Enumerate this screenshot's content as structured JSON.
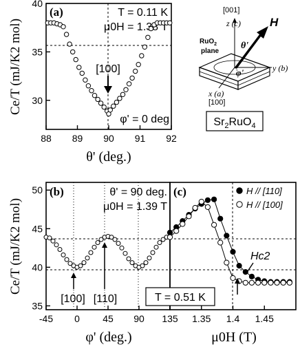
{
  "figure": {
    "material": {
      "prefix": "Sr",
      "sub1": "2",
      "mid": "RuO",
      "sub2": "4"
    },
    "schematic": {
      "axis_001": "[001]",
      "z_label": "z (c)",
      "plane_label_1": "RuO",
      "plane_label_sub": "2",
      "plane_label_2": "plane",
      "x_label": "x (a)",
      "x_index": "[100]",
      "y_label": "y (b)",
      "field_label": "H",
      "theta_label": "θ'",
      "phi_label": "φ'"
    }
  },
  "chart_data": [
    {
      "id": "a",
      "type": "scatter",
      "panel_label": "(a)",
      "annotations": [
        "T = 0.11 K",
        "μ0H = 1.38 T",
        "φ' = 0 deg",
        "[100]"
      ],
      "xlabel": "θ' (deg.)",
      "ylabel": "Ce/T (mJ/K2 mol)",
      "xlim": [
        88,
        92
      ],
      "ylim": [
        27,
        40
      ],
      "x_ticks": [
        88,
        89,
        90,
        91,
        92
      ],
      "y_ticks": [
        30,
        35,
        40
      ],
      "guides": {
        "dash_y": [
          38
        ],
        "dash_x": [
          90
        ]
      },
      "series": [
        {
          "marker": "open-circle",
          "points": [
            [
              88.05,
              38.0
            ],
            [
              88.15,
              38.0
            ],
            [
              88.25,
              38.0
            ],
            [
              88.35,
              37.9
            ],
            [
              88.45,
              37.8
            ],
            [
              88.55,
              37.6
            ],
            [
              88.65,
              36.8
            ],
            [
              88.75,
              35.8
            ],
            [
              88.85,
              35.0
            ],
            [
              88.95,
              34.2
            ],
            [
              89.05,
              33.4
            ],
            [
              89.15,
              32.8
            ],
            [
              89.25,
              32.1
            ],
            [
              89.35,
              31.5
            ],
            [
              89.45,
              31.0
            ],
            [
              89.55,
              30.5
            ],
            [
              89.65,
              30.1
            ],
            [
              89.75,
              29.7
            ],
            [
              89.85,
              29.3
            ],
            [
              89.95,
              28.9
            ],
            [
              90.0,
              28.6
            ],
            [
              90.05,
              29.0
            ],
            [
              90.15,
              29.4
            ],
            [
              90.25,
              29.8
            ],
            [
              90.35,
              30.2
            ],
            [
              90.45,
              30.6
            ],
            [
              90.55,
              31.1
            ],
            [
              90.65,
              31.7
            ],
            [
              90.75,
              32.3
            ],
            [
              90.85,
              33.0
            ],
            [
              90.95,
              33.7
            ],
            [
              91.05,
              34.6
            ],
            [
              91.15,
              35.5
            ],
            [
              91.25,
              36.5
            ],
            [
              91.35,
              37.4
            ],
            [
              91.45,
              37.8
            ],
            [
              91.55,
              38.0
            ],
            [
              91.65,
              38.0
            ],
            [
              91.75,
              38.0
            ],
            [
              91.85,
              38.0
            ],
            [
              91.95,
              38.0
            ]
          ]
        }
      ]
    },
    {
      "id": "b",
      "type": "scatter",
      "panel_label": "(b)",
      "annotations": [
        "θ' = 90 deg.",
        "μ0H = 1.39 T",
        "[100]",
        "[110]"
      ],
      "xlabel": "φ' (deg.)",
      "ylabel": "Ce/T (mJ/K2 mol)",
      "xlim": [
        -45,
        135
      ],
      "ylim": [
        34.5,
        51
      ],
      "x_ticks": [
        -45,
        0,
        45,
        90,
        135
      ],
      "y_ticks": [
        35,
        40,
        45,
        50
      ],
      "guides": {
        "dash_y": [
          40,
          44
        ],
        "dash_x": [
          0,
          45,
          90
        ]
      },
      "series": [
        {
          "marker": "open-circle",
          "points": [
            [
              -45,
              43.9
            ],
            [
              -40,
              43.8
            ],
            [
              -35,
              43.4
            ],
            [
              -30,
              42.9
            ],
            [
              -25,
              42.3
            ],
            [
              -20,
              41.6
            ],
            [
              -15,
              41.0
            ],
            [
              -10,
              40.5
            ],
            [
              -5,
              40.2
            ],
            [
              0,
              40.0
            ],
            [
              5,
              40.2
            ],
            [
              10,
              40.6
            ],
            [
              15,
              41.2
            ],
            [
              20,
              41.9
            ],
            [
              25,
              42.6
            ],
            [
              30,
              43.2
            ],
            [
              35,
              43.6
            ],
            [
              40,
              43.9
            ],
            [
              45,
              44.0
            ],
            [
              50,
              43.9
            ],
            [
              55,
              43.6
            ],
            [
              60,
              43.1
            ],
            [
              65,
              42.5
            ],
            [
              70,
              41.8
            ],
            [
              75,
              41.1
            ],
            [
              80,
              40.6
            ],
            [
              85,
              40.2
            ],
            [
              90,
              40.0
            ],
            [
              95,
              40.2
            ],
            [
              100,
              40.6
            ],
            [
              105,
              41.2
            ],
            [
              110,
              41.9
            ],
            [
              115,
              42.6
            ],
            [
              120,
              43.2
            ],
            [
              125,
              43.6
            ],
            [
              130,
              43.9
            ],
            [
              135,
              44.0
            ]
          ]
        }
      ]
    },
    {
      "id": "c",
      "type": "line",
      "panel_label": "(c)",
      "annotations": [
        "Hc2"
      ],
      "xlabel": "μ0H (T)",
      "ylabel": "",
      "xlim": [
        1.3,
        1.5
      ],
      "ylim": [
        34.5,
        51
      ],
      "x_ticks": [
        1.35,
        1.4,
        1.45
      ],
      "guides": {
        "dash_y": [
          44,
          40
        ],
        "dash_x": [
          1.4
        ]
      },
      "series": [
        {
          "name": "H // [110]",
          "marker": "filled-circle",
          "points": [
            [
              1.3,
              44.5
            ],
            [
              1.31,
              45.2
            ],
            [
              1.32,
              46.0
            ],
            [
              1.33,
              46.8
            ],
            [
              1.34,
              47.6
            ],
            [
              1.35,
              48.2
            ],
            [
              1.36,
              48.7
            ],
            [
              1.37,
              48.8
            ],
            [
              1.38,
              46.3
            ],
            [
              1.39,
              44.1
            ],
            [
              1.4,
              42.0
            ],
            [
              1.41,
              40.2
            ],
            [
              1.42,
              39.4
            ],
            [
              1.43,
              38.8
            ],
            [
              1.44,
              38.4
            ],
            [
              1.45,
              38.2
            ],
            [
              1.46,
              38.1
            ],
            [
              1.47,
              38.1
            ],
            [
              1.48,
              38.1
            ],
            [
              1.49,
              38.1
            ]
          ]
        },
        {
          "name": "H // [100]",
          "marker": "open-circle",
          "points": [
            [
              1.3,
              43.9
            ],
            [
              1.31,
              44.7
            ],
            [
              1.32,
              45.6
            ],
            [
              1.33,
              46.6
            ],
            [
              1.34,
              47.7
            ],
            [
              1.35,
              48.5
            ],
            [
              1.36,
              47.8
            ],
            [
              1.37,
              45.5
            ],
            [
              1.38,
              43.2
            ],
            [
              1.39,
              40.6
            ],
            [
              1.4,
              38.6
            ],
            [
              1.41,
              38.2
            ],
            [
              1.42,
              38.0
            ],
            [
              1.43,
              38.0
            ],
            [
              1.44,
              38.0
            ],
            [
              1.45,
              38.0
            ],
            [
              1.46,
              38.0
            ],
            [
              1.47,
              38.0
            ],
            [
              1.48,
              38.0
            ],
            [
              1.49,
              38.0
            ]
          ]
        }
      ],
      "shared_box_label": "T = 0.51 K"
    }
  ]
}
